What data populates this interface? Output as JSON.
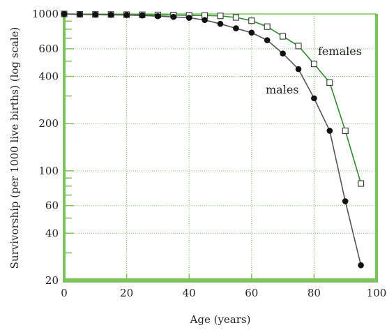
{
  "chart_data": {
    "type": "line",
    "xlabel": "Age (years)",
    "ylabel": "Survivorship (per 1000 live births) (log scale)",
    "xlim": [
      0,
      100
    ],
    "ylim": [
      20,
      1000
    ],
    "yscale": "log",
    "grid": true,
    "x_ticks": [
      0,
      20,
      40,
      60,
      80,
      100
    ],
    "y_ticks": [
      20,
      40,
      60,
      100,
      200,
      400,
      600,
      1000
    ],
    "colors": {
      "frame": "#7dc35b",
      "grid": "#7dc35b",
      "females_line": "#2e8b2e",
      "males_line": "#555555"
    },
    "series": [
      {
        "name": "females",
        "marker": "open-square",
        "x": [
          0,
          5,
          10,
          15,
          20,
          25,
          30,
          35,
          40,
          45,
          50,
          55,
          60,
          65,
          70,
          75,
          80,
          85,
          90,
          95
        ],
        "y": [
          1000,
          995,
          993,
          992,
          990,
          988,
          986,
          984,
          981,
          978,
          972,
          950,
          905,
          830,
          720,
          625,
          480,
          365,
          180,
          83
        ]
      },
      {
        "name": "males",
        "marker": "filled-circle",
        "x": [
          0,
          5,
          10,
          15,
          20,
          25,
          30,
          35,
          40,
          45,
          50,
          55,
          60,
          65,
          70,
          75,
          80,
          85,
          90,
          95
        ],
        "y": [
          1000,
          993,
          990,
          987,
          984,
          978,
          968,
          958,
          945,
          915,
          865,
          810,
          760,
          680,
          560,
          445,
          290,
          180,
          64,
          25
        ]
      }
    ]
  }
}
